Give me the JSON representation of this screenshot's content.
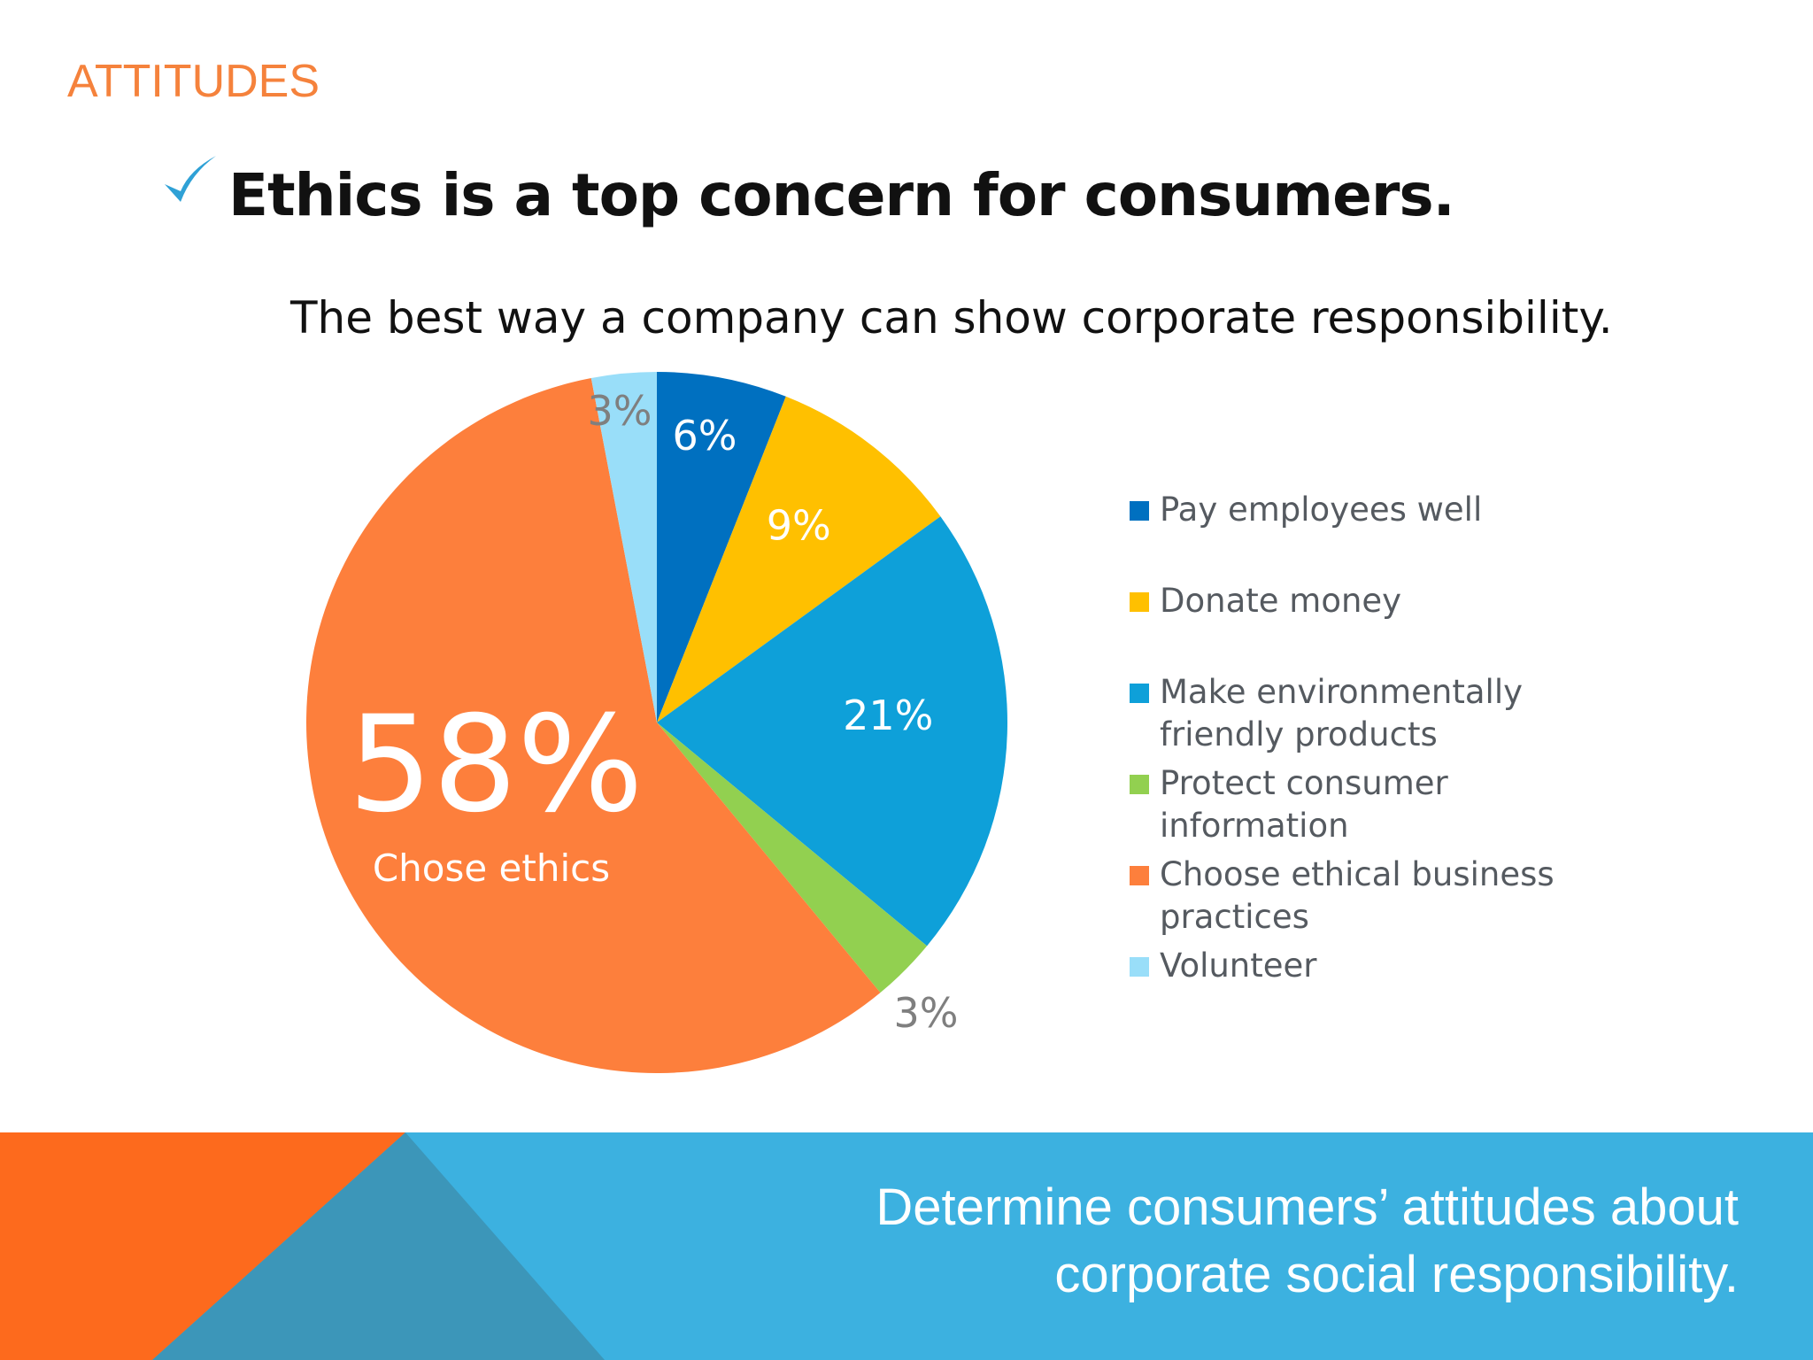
{
  "section_label": "ATTITUDES",
  "headline": "Ethics is a top concern for consumers.",
  "banner": {
    "text": "Determine consumers’ attitudes about corporate social responsibility."
  },
  "chart_data": {
    "type": "pie",
    "title": "The best way a company can show corporate responsibility.",
    "start_angle_deg": 0,
    "direction": "clockwise",
    "legend_position": "right",
    "slices": [
      {
        "label": "Pay employees well",
        "value": 6,
        "display": "6%",
        "color": "#0070c0"
      },
      {
        "label": "Donate money",
        "value": 9,
        "display": "9%",
        "color": "#ffc000"
      },
      {
        "label": "Make environmentally friendly products",
        "value": 21,
        "display": "21%",
        "color": "#0ea0d9"
      },
      {
        "label": "Protect consumer information",
        "value": 3,
        "display": "3%",
        "color": "#92d050"
      },
      {
        "label": "Choose ethical business practices",
        "value": 58,
        "display": "58%",
        "color": "#fd7f3c",
        "caption": "Chose ethics"
      },
      {
        "label": "Volunteer",
        "value": 3,
        "display": "3%",
        "color": "#99def9"
      }
    ]
  },
  "colors": {
    "accent_orange": "#f5823c",
    "check_blue": "#2fa1d6",
    "banner_blue": "#3cb1e0",
    "banner_orange": "#fd6a1d",
    "banner_teal": "#3c96b9"
  }
}
